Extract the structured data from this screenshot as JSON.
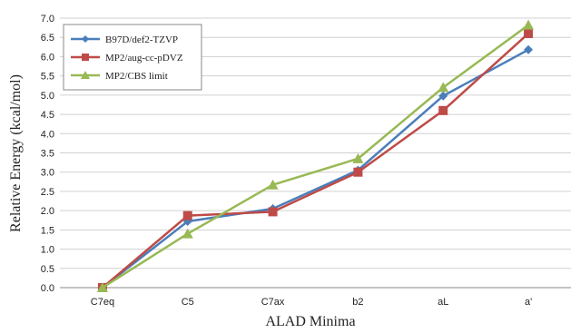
{
  "chart_data": {
    "type": "line",
    "xlabel": "ALAD Minima",
    "ylabel": "Relative Energy (kcal/mol)",
    "categories": [
      "C7eq",
      "C5",
      "C7ax",
      "b2",
      "aL",
      "a'"
    ],
    "ylim": [
      0,
      7
    ],
    "yticks": [
      "0.0",
      "0.5",
      "1.0",
      "1.5",
      "2.0",
      "2.5",
      "3.0",
      "3.5",
      "4.0",
      "4.5",
      "5.0",
      "5.5",
      "6.0",
      "6.5",
      "7.0"
    ],
    "grid": true,
    "legend_position": "top-left",
    "series": [
      {
        "name": "B97D/def2-TZVP",
        "values": [
          0.0,
          1.72,
          2.05,
          3.05,
          4.98,
          6.18
        ],
        "color": "#4a7ebb",
        "marker": "diamond"
      },
      {
        "name": "MP2/aug-cc-pDVZ",
        "values": [
          0.0,
          1.87,
          1.97,
          3.0,
          4.6,
          6.6
        ],
        "color": "#be4b48",
        "marker": "square"
      },
      {
        "name": "MP2/CBS limit",
        "values": [
          0.0,
          1.4,
          2.67,
          3.35,
          5.2,
          6.82
        ],
        "color": "#98b954",
        "marker": "triangle"
      }
    ]
  }
}
